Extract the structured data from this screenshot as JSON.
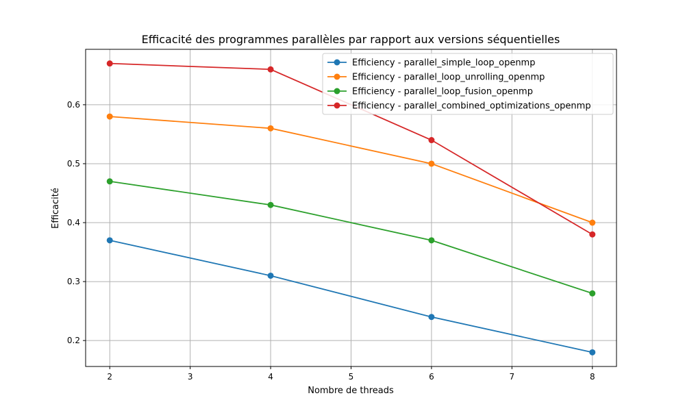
{
  "chart_data": {
    "type": "line",
    "title": "Efficacité des programmes parallèles par rapport aux versions séquentielles",
    "xlabel": "Nombre de threads",
    "ylabel": "Efficacité",
    "x": [
      2,
      4,
      6,
      8
    ],
    "xlim": [
      1.7,
      8.3
    ],
    "ylim": [
      0.156,
      0.694
    ],
    "xticks": [
      2,
      3,
      4,
      5,
      6,
      7,
      8
    ],
    "yticks": [
      0.2,
      0.3,
      0.4,
      0.5,
      0.6
    ],
    "grid": true,
    "legend_position": "top-right",
    "series": [
      {
        "name": "Efficiency - parallel_simple_loop_openmp",
        "color": "#1f77b4",
        "values": [
          0.37,
          0.31,
          0.24,
          0.18
        ]
      },
      {
        "name": "Efficiency - parallel_loop_unrolling_openmp",
        "color": "#ff7f0e",
        "values": [
          0.58,
          0.56,
          0.5,
          0.4
        ]
      },
      {
        "name": "Efficiency - parallel_loop_fusion_openmp",
        "color": "#2ca02c",
        "values": [
          0.47,
          0.43,
          0.37,
          0.28
        ]
      },
      {
        "name": "Efficiency - parallel_combined_optimizations_openmp",
        "color": "#d62728",
        "values": [
          0.67,
          0.66,
          0.54,
          0.38
        ]
      }
    ]
  }
}
